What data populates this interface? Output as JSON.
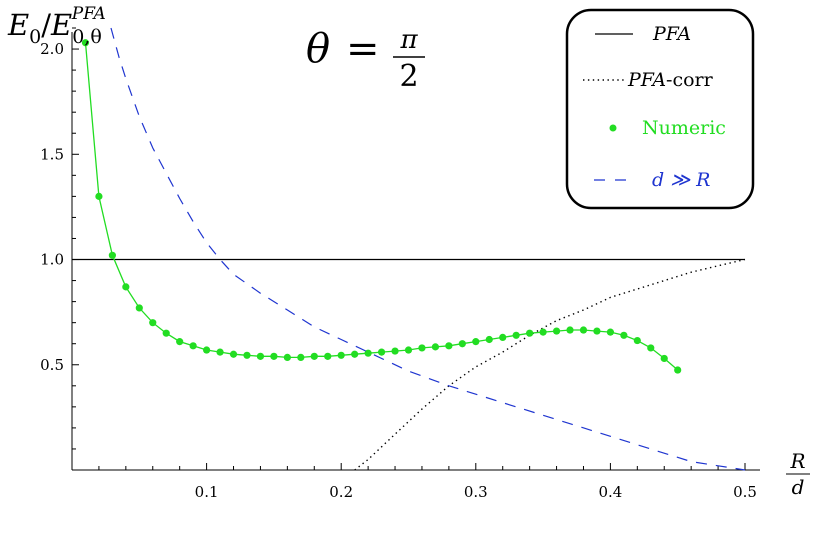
{
  "chart_data": {
    "type": "line",
    "ylabel": {
      "base": "E",
      "sub0": "0",
      "slash": "/",
      "base2": "E",
      "sub2": "0,θ",
      "sup2": "PFA"
    },
    "xlabel": {
      "num": "R",
      "den": "d"
    },
    "annotation": {
      "lhs": "θ",
      "eq": "=",
      "num": "π",
      "den": "2"
    },
    "xlim": [
      0.0,
      0.5
    ],
    "ylim": [
      0.0,
      2.1
    ],
    "x_ticks": [
      0.1,
      0.2,
      0.3,
      0.4,
      0.5
    ],
    "x_tick_labels": [
      "0.1",
      "0.2",
      "0.3",
      "0.4",
      "0.5"
    ],
    "y_ticks": [
      0.5,
      1.0,
      1.5,
      2.0
    ],
    "y_tick_labels": [
      "0.5",
      "1.0",
      "1.5",
      "2.0"
    ],
    "legend": {
      "placement": "top-right",
      "entries": [
        {
          "label": "PFA",
          "label_italic": "PFA",
          "label_rest": "",
          "style": "solid",
          "color": "#000000"
        },
        {
          "label": "PFA-corr",
          "label_italic": "PFA",
          "label_rest": "-corr",
          "style": "dotted",
          "color": "#000000"
        },
        {
          "label": "Numeric",
          "label_italic": "",
          "label_rest": "Numeric",
          "style": "dots",
          "color": "#22dd22"
        },
        {
          "label": "d ≫ R",
          "label_italic": "d ≫ R",
          "label_rest": "",
          "style": "dashed",
          "color": "#1f35d0"
        }
      ]
    },
    "series": [
      {
        "key": "pfa",
        "style": "solid",
        "color": "#000000",
        "x": [
          0.0,
          0.5
        ],
        "y": [
          1.0,
          1.0
        ]
      },
      {
        "key": "pfa_corr",
        "style": "dotted",
        "color": "#000000",
        "x": [
          0.21,
          0.22,
          0.24,
          0.26,
          0.28,
          0.3,
          0.32,
          0.34,
          0.36,
          0.38,
          0.4,
          0.42,
          0.44,
          0.46,
          0.48,
          0.5
        ],
        "y": [
          0.0,
          0.05,
          0.17,
          0.29,
          0.4,
          0.49,
          0.56,
          0.64,
          0.71,
          0.76,
          0.82,
          0.86,
          0.9,
          0.94,
          0.97,
          1.0
        ]
      },
      {
        "key": "numeric",
        "style": "dots",
        "color": "#22dd22",
        "x": [
          0.01,
          0.02,
          0.03,
          0.04,
          0.05,
          0.06,
          0.07,
          0.08,
          0.09,
          0.1,
          0.11,
          0.12,
          0.13,
          0.14,
          0.15,
          0.16,
          0.17,
          0.18,
          0.19,
          0.2,
          0.21,
          0.22,
          0.23,
          0.24,
          0.25,
          0.26,
          0.27,
          0.28,
          0.29,
          0.3,
          0.31,
          0.32,
          0.33,
          0.34,
          0.35,
          0.36,
          0.37,
          0.38,
          0.39,
          0.4,
          0.41,
          0.42,
          0.43,
          0.44,
          0.45
        ],
        "y": [
          2.03,
          1.3,
          1.02,
          0.87,
          0.77,
          0.7,
          0.65,
          0.61,
          0.59,
          0.57,
          0.56,
          0.55,
          0.545,
          0.54,
          0.54,
          0.535,
          0.535,
          0.54,
          0.54,
          0.545,
          0.55,
          0.555,
          0.56,
          0.565,
          0.57,
          0.58,
          0.585,
          0.59,
          0.6,
          0.61,
          0.62,
          0.63,
          0.64,
          0.65,
          0.655,
          0.66,
          0.665,
          0.665,
          0.66,
          0.655,
          0.64,
          0.615,
          0.58,
          0.53,
          0.475
        ]
      },
      {
        "key": "large_d",
        "style": "dashed",
        "color": "#1f35d0",
        "x": [
          0.029,
          0.035,
          0.04,
          0.05,
          0.06,
          0.07,
          0.08,
          0.09,
          0.1,
          0.11,
          0.12,
          0.14,
          0.16,
          0.18,
          0.2,
          0.22,
          0.25,
          0.28,
          0.3,
          0.33,
          0.36,
          0.4,
          0.43,
          0.46,
          0.48,
          0.5
        ],
        "y": [
          2.1,
          1.96,
          1.86,
          1.68,
          1.53,
          1.41,
          1.29,
          1.18,
          1.08,
          1.0,
          0.93,
          0.84,
          0.76,
          0.68,
          0.62,
          0.56,
          0.47,
          0.4,
          0.36,
          0.3,
          0.24,
          0.16,
          0.1,
          0.04,
          0.02,
          0.0
        ]
      }
    ]
  }
}
